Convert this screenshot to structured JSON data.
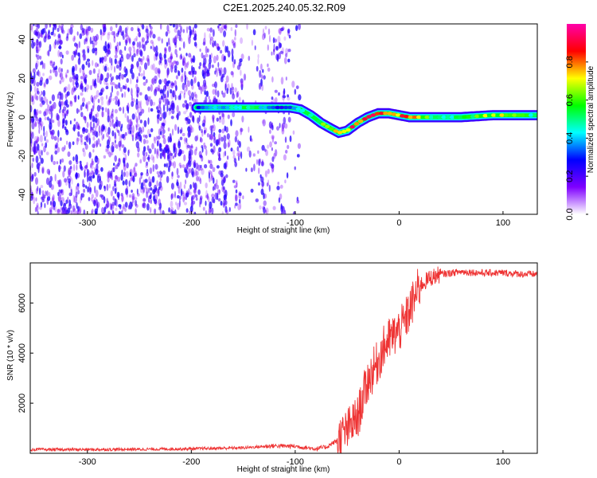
{
  "figure_title": "C2E1.2025.240.05.32.R09",
  "chart_data": [
    {
      "type": "heatmap",
      "title": "C2E1.2025.240.05.32.R09",
      "xlabel": "Height of straight line (km)",
      "ylabel": "Frequency (Hz)",
      "xlim": [
        -355,
        133
      ],
      "ylim": [
        -50,
        48
      ],
      "x_ticks": [
        -300,
        -200,
        -100,
        0,
        100
      ],
      "x_tick_labels": [
        "-300",
        "-200",
        "-100",
        "0",
        "100"
      ],
      "y_ticks": [
        -40,
        -20,
        0,
        20,
        40
      ],
      "y_tick_labels": [
        "-40",
        "-20",
        "0",
        "20",
        "40"
      ],
      "colorbar": {
        "label": "Normalized spectral amplitude",
        "range": [
          0.0,
          1.0
        ],
        "ticks": [
          0.0,
          0.2,
          0.4,
          0.6,
          0.8
        ],
        "tick_labels": [
          "0.0",
          "0.2",
          "0.4",
          "0.6",
          "0.8"
        ],
        "colormap": [
          "#ffffff",
          "#7f00ff",
          "#0000ff",
          "#00ffff",
          "#00ff00",
          "#ffff00",
          "#ff0000",
          "#ff00aa"
        ]
      },
      "ridge": {
        "x": [
          -195,
          -180,
          -160,
          -140,
          -120,
          -105,
          -95,
          -85,
          -75,
          -65,
          -58,
          -50,
          -40,
          -30,
          -20,
          -10,
          0,
          10,
          30,
          60,
          90,
          110,
          133
        ],
        "freq": [
          5,
          5,
          5,
          5,
          5,
          5,
          4,
          1,
          -3,
          -6,
          -8,
          -7,
          -3,
          0,
          2,
          2,
          1,
          0,
          0,
          0,
          1,
          1,
          1
        ],
        "amplitude": [
          0.3,
          0.4,
          0.5,
          0.6,
          0.35,
          0.3,
          0.45,
          0.6,
          0.7,
          0.75,
          0.8,
          0.85,
          0.95,
          0.9,
          1.0,
          0.95,
          0.9,
          0.85,
          0.6,
          0.55,
          0.75,
          0.65,
          0.5
        ]
      },
      "noise_region_x": [
        -355,
        -95
      ]
    },
    {
      "type": "line",
      "xlabel": "Height of straight line (km)",
      "ylabel": "SNR (10 * v/v)",
      "xlim": [
        -355,
        133
      ],
      "ylim": [
        0,
        7600
      ],
      "x_ticks": [
        -300,
        -200,
        -100,
        0,
        100
      ],
      "x_tick_labels": [
        "-300",
        "-200",
        "-100",
        "0",
        "100"
      ],
      "y_ticks": [
        2000,
        4000,
        6000
      ],
      "y_tick_labels": [
        "2000",
        "4000",
        "6000"
      ],
      "color": "#ee3333",
      "series": [
        {
          "name": "SNR",
          "x": [
            -355,
            -300,
            -250,
            -200,
            -150,
            -120,
            -100,
            -80,
            -70,
            -60,
            -50,
            -45,
            -40,
            -35,
            -30,
            -25,
            -20,
            -15,
            -10,
            -5,
            0,
            5,
            10,
            15,
            20,
            30,
            40,
            60,
            80,
            100,
            120,
            133
          ],
          "y": [
            150,
            150,
            160,
            180,
            220,
            300,
            280,
            180,
            250,
            500,
            900,
            1200,
            1400,
            2200,
            2900,
            3300,
            3700,
            4200,
            4500,
            4700,
            4900,
            5200,
            5700,
            6200,
            6700,
            7000,
            7150,
            7250,
            7200,
            7200,
            7150,
            7150
          ]
        }
      ]
    }
  ]
}
